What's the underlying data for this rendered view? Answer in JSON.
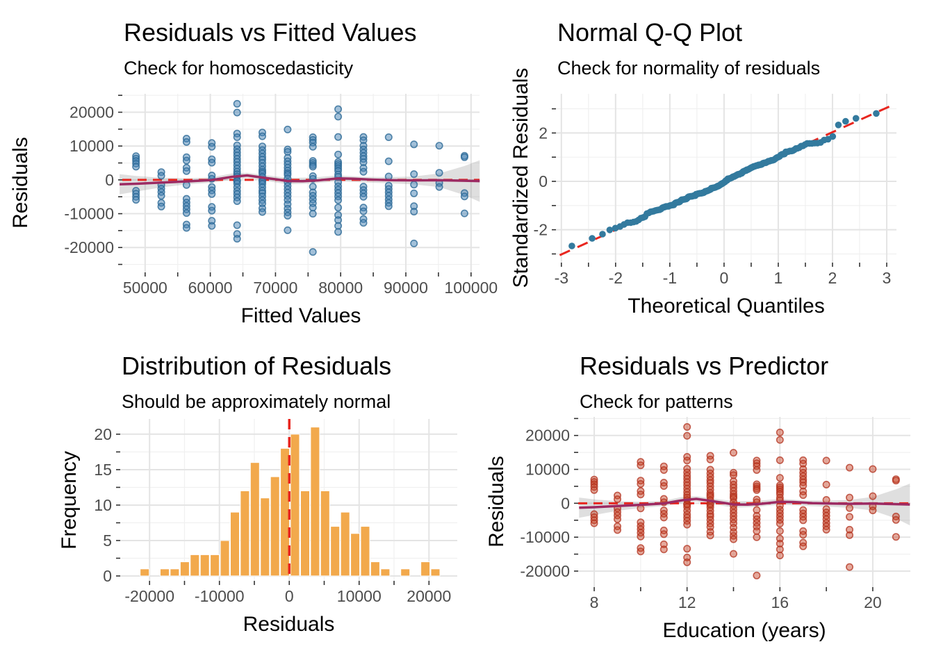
{
  "figure": {
    "background": "#ffffff",
    "description": "2x2 grid of regression diagnostic plots"
  },
  "colors": {
    "blue_point_fill": "rgba(70,130,180,0.5)",
    "blue_point_stroke": "rgba(44,105,150,0.8)",
    "qq_point": "#337A9E",
    "red_point_fill": "rgba(198,64,36,0.45)",
    "red_point_stroke": "rgba(178,48,28,0.75)",
    "hist_fill": "#F2A94C",
    "hist_stroke": "#FFFFFF",
    "smooth_line": "#9C2B63",
    "reference_red": "#E8261F",
    "ci_band": "rgba(128,128,128,0.25)",
    "grid_major": "#E4E4E4",
    "grid_minor": "#F0F0F0",
    "tick_text": "#4D4D4D",
    "tick_mark": "#333333",
    "title_text": "#000000"
  },
  "chart_data": {
    "shared": {
      "n": 200,
      "fitted_from_education": {
        "intercept": 17584,
        "slope": 3877
      },
      "residual_groups": [
        {
          "education": 8,
          "residuals": [
            7000,
            6300,
            5600,
            4800,
            3900,
            -3200,
            -4100,
            -5000,
            -5900
          ]
        },
        {
          "education": 9,
          "residuals": [
            2300,
            1200,
            -1500,
            -2600,
            -3600,
            -4700,
            -6800,
            -7900
          ]
        },
        {
          "education": 10,
          "residuals": [
            12200,
            11200,
            6700,
            5700,
            3600,
            2600,
            -1500,
            -5600,
            -6700,
            -7700,
            -8700,
            -9800,
            -13200,
            -14200
          ]
        },
        {
          "education": 11,
          "residuals": [
            10900,
            9800,
            6100,
            5100,
            1300,
            300,
            -2100,
            -3100,
            -4200,
            -8000,
            -9100,
            -12100,
            -13600
          ]
        },
        {
          "education": 12,
          "residuals": [
            22500,
            19900,
            13700,
            12600,
            10200,
            9100,
            8100,
            7200,
            6200,
            5300,
            4300,
            3300,
            2400,
            1700,
            1000,
            -200,
            -400,
            -1100,
            -2200,
            -3300,
            -4200,
            -5200,
            -6300,
            -13400,
            -16000,
            -17400
          ]
        },
        {
          "education": 13,
          "residuals": [
            14000,
            12900,
            9900,
            8800,
            7800,
            6800,
            6000,
            5000,
            4000,
            3000,
            2400,
            1900,
            900,
            -100,
            -500,
            -1200,
            -2200,
            -3200,
            -3900,
            -4900,
            -6000,
            -7000,
            -8400,
            -9500
          ]
        },
        {
          "education": 14,
          "residuals": [
            14900,
            9000,
            8300,
            6500,
            5500,
            4600,
            3600,
            2700,
            2000,
            1500,
            400,
            -700,
            -1800,
            -2800,
            -3800,
            -4800,
            -5900,
            -7200,
            -8500,
            -9600,
            -10600,
            -14900
          ]
        },
        {
          "education": 15,
          "residuals": [
            12600,
            11800,
            11000,
            9800,
            5600,
            5000,
            4400,
            3900,
            1100,
            300,
            -2000,
            -3700,
            -4700,
            -5800,
            -6900,
            -8200,
            -10000,
            -21300
          ]
        },
        {
          "education": 16,
          "residuals": [
            20900,
            18700,
            12700,
            7500,
            5300,
            4700,
            4100,
            3400,
            2700,
            1600,
            900,
            -700,
            -1900,
            -2900,
            -3900,
            -4900,
            -6000,
            -8200,
            -10400,
            -11900,
            -13600,
            -15400
          ]
        },
        {
          "education": 17,
          "residuals": [
            12700,
            11700,
            10100,
            9000,
            8000,
            7000,
            6200,
            5200,
            3500,
            2400,
            -2000,
            -3000,
            -4000,
            -5000,
            -8200,
            -9300,
            -11600,
            -12700
          ]
        },
        {
          "education": 18,
          "residuals": [
            12600,
            5500,
            1000,
            -1700,
            -2700,
            -3700,
            -4700,
            -5800,
            -6800,
            -7800
          ]
        },
        {
          "education": 19,
          "residuals": [
            10500,
            1700,
            -1400,
            -4000,
            -7800,
            -9400,
            -18800
          ]
        },
        {
          "education": 20,
          "residuals": [
            10100,
            2100,
            -900,
            -2100
          ]
        },
        {
          "education": 21,
          "residuals": [
            7100,
            6700,
            -3900,
            -4900,
            -9900
          ]
        }
      ],
      "smooth_line": [
        [
          7.35,
          -1300
        ],
        [
          8,
          -1150
        ],
        [
          9,
          -800
        ],
        [
          10,
          -450
        ],
        [
          11,
          -50
        ],
        [
          11.8,
          900
        ],
        [
          12.4,
          1300
        ],
        [
          13,
          700
        ],
        [
          13.6,
          100
        ],
        [
          14,
          -350
        ],
        [
          14.6,
          -400
        ],
        [
          15.2,
          -150
        ],
        [
          16,
          450
        ],
        [
          16.6,
          350
        ],
        [
          17.4,
          50
        ],
        [
          18.2,
          -100
        ],
        [
          19,
          -150
        ],
        [
          20,
          -100
        ],
        [
          21,
          -250
        ],
        [
          21.6,
          -350
        ]
      ],
      "ci_band_upper": [
        [
          7.35,
          1700
        ],
        [
          8,
          1150
        ],
        [
          9,
          650
        ],
        [
          10,
          450
        ],
        [
          11,
          750
        ],
        [
          11.8,
          1900
        ],
        [
          12.4,
          2100
        ],
        [
          13,
          1500
        ],
        [
          14,
          600
        ],
        [
          15,
          700
        ],
        [
          16,
          1300
        ],
        [
          17,
          900
        ],
        [
          18,
          800
        ],
        [
          19,
          1000
        ],
        [
          20,
          1900
        ],
        [
          21,
          4100
        ],
        [
          21.6,
          5800
        ]
      ],
      "ci_band_lower": [
        [
          7.35,
          -4300
        ],
        [
          8,
          -3450
        ],
        [
          9,
          -2250
        ],
        [
          10,
          -1350
        ],
        [
          11,
          -850
        ],
        [
          11.8,
          100
        ],
        [
          12.4,
          500
        ],
        [
          13,
          -100
        ],
        [
          14,
          -1300
        ],
        [
          15,
          -1050
        ],
        [
          16,
          -400
        ],
        [
          17,
          -750
        ],
        [
          18,
          -1000
        ],
        [
          19,
          -1350
        ],
        [
          20,
          -2150
        ],
        [
          21,
          -4500
        ],
        [
          21.6,
          -6500
        ]
      ]
    },
    "plots": [
      {
        "id": "residuals_vs_fitted",
        "type": "scatter",
        "title": "Residuals vs Fitted Values",
        "subtitle": "Check for homoscedasticity",
        "xlabel": "Fitted Values",
        "ylabel": "Residuals",
        "xlim": [
          46500,
          101300
        ],
        "ylim": [
          -27350,
          25450
        ],
        "grid": true,
        "legend": "none",
        "reference_line": {
          "type": "hline",
          "y": 0,
          "style": "dashed-red"
        },
        "xticks": {
          "values": [
            50000,
            60000,
            70000,
            80000,
            90000,
            100000
          ],
          "labels": [
            "50000",
            "60000",
            "70000",
            "80000",
            "90000",
            "100000"
          ],
          "minor": [
            55000,
            65000,
            75000,
            85000,
            95000
          ]
        },
        "yticks": {
          "values": [
            -20000,
            -10000,
            0,
            10000,
            20000
          ],
          "labels": [
            "-20000",
            "-10000",
            "0",
            "10000",
            "20000"
          ],
          "minor": [
            -25000,
            -15000,
            -5000,
            5000,
            15000,
            25000
          ]
        }
      },
      {
        "id": "normal_qq",
        "type": "scatter",
        "title": "Normal Q-Q Plot",
        "subtitle": "Check for normality of residuals",
        "xlabel": "Theoretical Quantiles",
        "ylabel": "Standardized Residuals",
        "xlim": [
          -3.1,
          3.18
        ],
        "ylim": [
          -3.36,
          3.62
        ],
        "grid": true,
        "legend": "none",
        "reference_line": {
          "type": "qqline",
          "style": "dashed-red"
        },
        "xticks": {
          "values": [
            -3,
            -2,
            -1,
            0,
            1,
            2,
            3
          ],
          "labels": [
            "-3",
            "-2",
            "-1",
            "0",
            "1",
            "2",
            "3"
          ],
          "minor": [
            -2.5,
            -1.5,
            -0.5,
            0.5,
            1.5,
            2.5
          ]
        },
        "yticks": {
          "values": [
            -2,
            0,
            2
          ],
          "labels": [
            "-2",
            "0",
            "2"
          ],
          "minor": [
            -3,
            -1,
            1,
            3
          ]
        }
      },
      {
        "id": "residual_histogram",
        "type": "bar",
        "title": "Distribution of Residuals",
        "subtitle": "Should be approximately normal",
        "xlabel": "Residuals",
        "ylabel": "Frequency",
        "xlim": [
          -24200,
          24050
        ],
        "ylim": [
          -0.69,
          22.15
        ],
        "grid": true,
        "legend": "none",
        "reference_line": {
          "type": "vline",
          "x": 0,
          "style": "dashed-red"
        },
        "bins": {
          "start_center": -20700,
          "binwidth": 1435,
          "counts": [
            1,
            0,
            1,
            1,
            2,
            3,
            3,
            3,
            5,
            9,
            12,
            16,
            11,
            14,
            18,
            20,
            12,
            21,
            12,
            7,
            9,
            6,
            7,
            2,
            1,
            0,
            1,
            0,
            2,
            1
          ]
        },
        "xticks": {
          "values": [
            -20000,
            -10000,
            0,
            10000,
            20000
          ],
          "labels": [
            "-20000",
            "-10000",
            "0",
            "10000",
            "20000"
          ],
          "minor": [
            -15000,
            -5000,
            5000,
            15000
          ]
        },
        "yticks": {
          "values": [
            0,
            5,
            10,
            15,
            20
          ],
          "labels": [
            "0",
            "5",
            "10",
            "15",
            "20"
          ],
          "minor": [
            2.5,
            7.5,
            12.5,
            17.5
          ]
        }
      },
      {
        "id": "residuals_vs_predictor",
        "type": "scatter",
        "title": "Residuals vs Predictor",
        "subtitle": "Check for patterns",
        "xlabel": "Education (years)",
        "ylabel": "Residuals",
        "xlim": [
          7.31,
          21.62
        ],
        "ylim": [
          -24720,
          25480
        ],
        "grid": true,
        "legend": "none",
        "reference_line": {
          "type": "hline",
          "y": 0,
          "style": "dashed-red"
        },
        "xticks": {
          "values": [
            8,
            12,
            16,
            20
          ],
          "labels": [
            "8",
            "12",
            "16",
            "20"
          ],
          "minor": [
            10,
            14,
            18
          ]
        },
        "yticks": {
          "values": [
            -20000,
            -10000,
            0,
            10000,
            20000
          ],
          "labels": [
            "-20000",
            "-10000",
            "0",
            "10000",
            "20000"
          ],
          "minor": [
            -15000,
            -5000,
            5000,
            15000,
            25000
          ]
        }
      }
    ]
  }
}
